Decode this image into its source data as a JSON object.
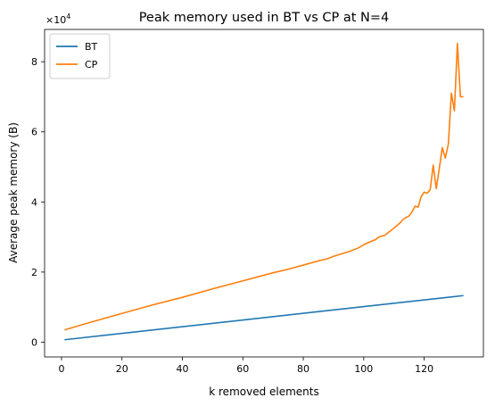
{
  "chart_data": {
    "type": "line",
    "title": "Peak memory used in BT vs CP at N=4",
    "xlabel": "k removed elements",
    "ylabel": "Average peak memory (B)",
    "y_multiplier_base": "×10",
    "y_multiplier_exp": "4",
    "xlim": [
      -5.6,
      139.6
    ],
    "ylim": [
      -0.42,
      8.92
    ],
    "x_ticks": [
      0,
      20,
      40,
      60,
      80,
      100,
      120
    ],
    "x_tick_labels": [
      "0",
      "20",
      "40",
      "60",
      "80",
      "100",
      "120"
    ],
    "y_ticks": [
      0,
      2,
      4,
      6,
      8
    ],
    "y_tick_labels": [
      "0",
      "2",
      "4",
      "6",
      "8"
    ],
    "grid": false,
    "legend_position": "top-left",
    "series": [
      {
        "name": "BT",
        "color": "#1f77b4",
        "x": [
          1,
          133
        ],
        "y": [
          0.07,
          1.33
        ]
      },
      {
        "name": "CP",
        "color": "#ff7f0e",
        "x": [
          1,
          10,
          20,
          30,
          40,
          50,
          60,
          70,
          75,
          80,
          85,
          88,
          90,
          95,
          98,
          100,
          102,
          104,
          105,
          107,
          108,
          110,
          112,
          113,
          114,
          115,
          116,
          117,
          118,
          119,
          120,
          121,
          122,
          123,
          124,
          125,
          126,
          127,
          128,
          129,
          130,
          131,
          132,
          133
        ],
        "y": [
          0.35,
          0.58,
          0.82,
          1.06,
          1.28,
          1.52,
          1.75,
          1.98,
          2.08,
          2.2,
          2.32,
          2.38,
          2.45,
          2.58,
          2.68,
          2.78,
          2.86,
          2.93,
          3.0,
          3.05,
          3.12,
          3.25,
          3.4,
          3.5,
          3.56,
          3.6,
          3.72,
          3.88,
          3.85,
          4.15,
          4.28,
          4.25,
          4.35,
          5.05,
          4.38,
          4.95,
          5.55,
          5.25,
          5.65,
          7.1,
          6.6,
          8.52,
          7.0,
          7.0
        ]
      }
    ]
  }
}
